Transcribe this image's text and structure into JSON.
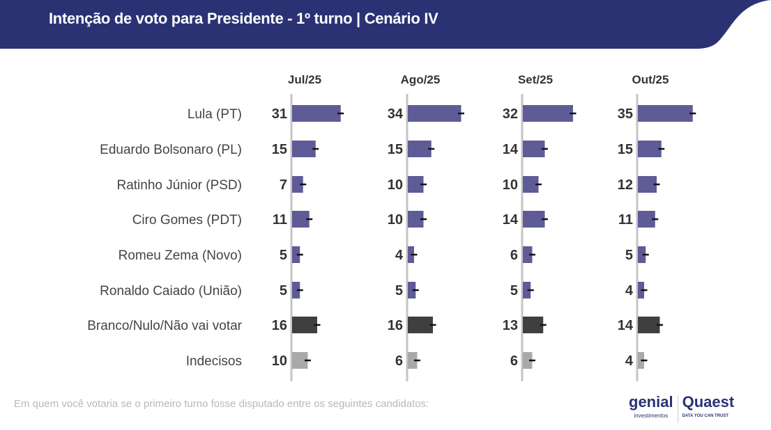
{
  "header": {
    "title": "Intenção de voto para Presidente - 1º turno | Cenário IV"
  },
  "footer": {
    "question": "Em quem você votaria se o primeiro turno fosse disputado entre os seguintes candidatos:"
  },
  "logos": {
    "genial": "genial",
    "genial_sub": "investimentos",
    "quaest": "Quaest",
    "quaest_sub": "DATA YOU CAN TRUST"
  },
  "colors": {
    "header": "#2b3274",
    "candidate": "#5e5b97",
    "blank": "#3f3f3f",
    "undecided": "#a9a9a9"
  },
  "chart_data": {
    "type": "bar",
    "title": "Intenção de voto para Presidente - 1º turno | Cenário IV",
    "categories": [
      "Lula (PT)",
      "Eduardo Bolsonaro (PL)",
      "Ratinho Júnior (PSD)",
      "Ciro Gomes (PDT)",
      "Romeu Zema (Novo)",
      "Ronaldo Caiado (União)",
      "Branco/Nulo/Não vai votar",
      "Indecisos"
    ],
    "category_types": [
      "candidate",
      "candidate",
      "candidate",
      "candidate",
      "candidate",
      "candidate",
      "blank",
      "undecided"
    ],
    "series": [
      {
        "name": "Jul/25",
        "values": [
          31,
          15,
          7,
          11,
          5,
          5,
          16,
          10
        ]
      },
      {
        "name": "Ago/25",
        "values": [
          34,
          15,
          10,
          10,
          4,
          5,
          16,
          6
        ]
      },
      {
        "name": "Set/25",
        "values": [
          32,
          14,
          10,
          14,
          6,
          5,
          13,
          6
        ]
      },
      {
        "name": "Out/25",
        "values": [
          35,
          15,
          12,
          11,
          5,
          4,
          14,
          4
        ]
      }
    ],
    "error_margin": 2,
    "unit": "%"
  }
}
